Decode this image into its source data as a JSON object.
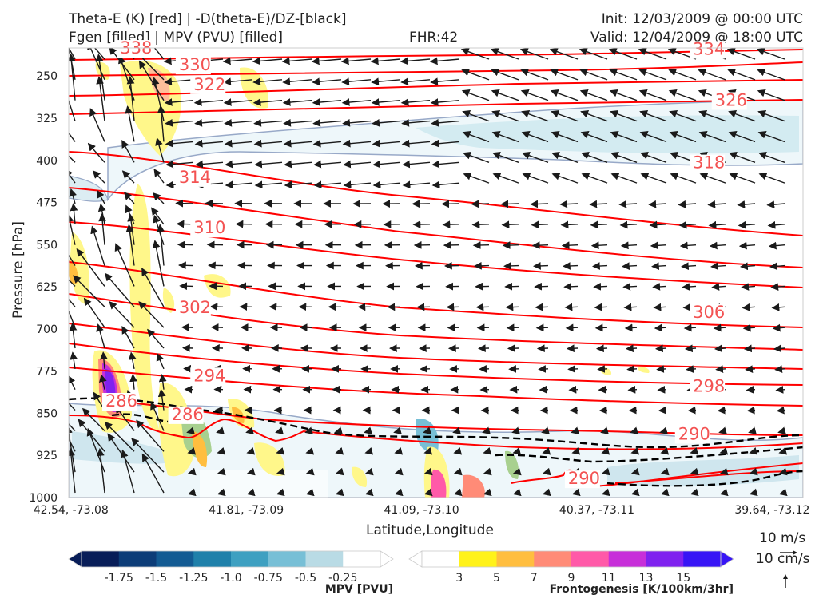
{
  "header": {
    "title_line1": "Theta-E (K) [red] | -D(theta-E)/DZ-[black]",
    "title_line2": "Fgen [filled] | MPV (PVU) [filled]",
    "fhr": "FHR:42",
    "init": "Init: 12/03/2009 @ 00:00 UTC",
    "valid": "Valid: 12/04/2009 @ 18:00 UTC"
  },
  "colors": {
    "theta_e": "#ff0000",
    "theta_e_label": "#f35252",
    "stability": "#000000",
    "mpv_outline": "#98a9c8"
  },
  "chart_data": {
    "type": "cross-section",
    "xlabel": "Latitude,Longitude",
    "ylabel": "Pressure [hPa]",
    "x_ticks": [
      "42.54, -73.08",
      "41.81, -73.09",
      "41.09, -73.10",
      "40.37, -73.11",
      "39.64, -73.12"
    ],
    "y_ticks": [
      250,
      325,
      400,
      475,
      550,
      625,
      700,
      775,
      850,
      925,
      1000
    ],
    "ylim": [
      1000,
      200
    ],
    "theta_e_labels": [
      {
        "value": "338",
        "x": 0.07,
        "p": 210
      },
      {
        "value": "330",
        "x": 0.15,
        "p": 240
      },
      {
        "value": "322",
        "x": 0.17,
        "p": 275
      },
      {
        "value": "314",
        "x": 0.15,
        "p": 440
      },
      {
        "value": "310",
        "x": 0.17,
        "p": 530
      },
      {
        "value": "302",
        "x": 0.15,
        "p": 672
      },
      {
        "value": "294",
        "x": 0.17,
        "p": 793
      },
      {
        "value": "286",
        "x": 0.05,
        "p": 838
      },
      {
        "value": "286",
        "x": 0.14,
        "p": 862
      },
      {
        "value": "334",
        "x": 0.85,
        "p": 212
      },
      {
        "value": "326",
        "x": 0.88,
        "p": 303
      },
      {
        "value": "318",
        "x": 0.85,
        "p": 414
      },
      {
        "value": "306",
        "x": 0.85,
        "p": 680
      },
      {
        "value": "298",
        "x": 0.85,
        "p": 812
      },
      {
        "value": "290",
        "x": 0.83,
        "p": 897
      },
      {
        "value": "290",
        "x": 0.68,
        "p": 976
      }
    ],
    "quiver_key": {
      "h_label": "10 m/s",
      "v_label": "10 cm/s"
    }
  },
  "colorbars": {
    "mpv": {
      "title": "MPV [PVU]",
      "ticks": [
        "-1.75",
        "-1.5",
        "-1.25",
        "-1.0",
        "-0.75",
        "-0.5",
        "-0.25"
      ],
      "colors": [
        "#081d58",
        "#0d3d78",
        "#135b93",
        "#1f80aa",
        "#3ea0c1",
        "#77bfd6",
        "#b9dbe5",
        "#ffffff"
      ]
    },
    "fgen": {
      "title": "Frontogenesis [K/100km/3hr]",
      "ticks": [
        "3",
        "5",
        "7",
        "9",
        "11",
        "13",
        "15"
      ],
      "colors": [
        "#ffffff",
        "#fff21a",
        "#ffbe3f",
        "#ff8b77",
        "#ff5aa8",
        "#c72fd9",
        "#7f22ef",
        "#3715f5"
      ]
    }
  }
}
